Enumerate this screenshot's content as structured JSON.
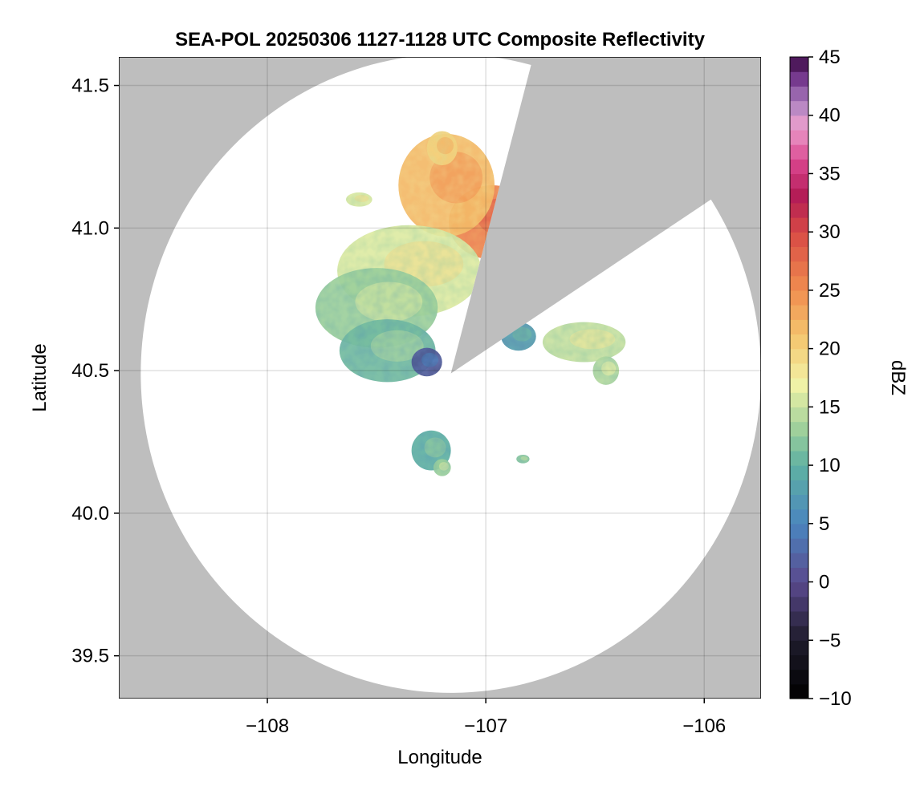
{
  "chart_data": {
    "type": "heatmap",
    "title": "SEA-POL 20250306 1127-1128 UTC Composite Reflectivity",
    "xlabel": "Longitude",
    "ylabel": "Latitude",
    "xlim": [
      -108.68,
      -105.74
    ],
    "ylim": [
      39.35,
      41.6
    ],
    "x_ticks": [
      -108,
      -107,
      -106
    ],
    "x_tick_labels": [
      "−108",
      "−107",
      "−106"
    ],
    "y_ticks": [
      39.5,
      40.0,
      40.5,
      41.0,
      41.5
    ],
    "y_tick_labels": [
      "39.5",
      "40.0",
      "40.5",
      "41.0",
      "41.5"
    ],
    "grid": true,
    "background_color": "#bebebe",
    "coverage_color": "#ffffff",
    "radar_center": [
      -107.16,
      40.49
    ],
    "radar_range_lat_deg": 1.12,
    "blocked_sector": {
      "from_bearing_deg": 15,
      "to_bearing_deg": 57
    },
    "colorbar": {
      "label": "dBZ",
      "min": -10,
      "max": 45,
      "ticks": [
        -10,
        -5,
        0,
        5,
        10,
        15,
        20,
        25,
        30,
        35,
        40,
        45
      ],
      "tick_labels": [
        "−10",
        "−5",
        "0",
        "5",
        "10",
        "15",
        "20",
        "25",
        "30",
        "35",
        "40",
        "45"
      ],
      "colormap": "spectral_extended",
      "color_stops": [
        [
          -10,
          "#000000"
        ],
        [
          -5,
          "#1e1b2b"
        ],
        [
          0,
          "#5a4a8e"
        ],
        [
          5,
          "#4a85bf"
        ],
        [
          10,
          "#5fb1a2"
        ],
        [
          13,
          "#9ccf9b"
        ],
        [
          17,
          "#f2f3a6"
        ],
        [
          21,
          "#f4c66f"
        ],
        [
          25,
          "#f08d4f"
        ],
        [
          30,
          "#d84a45"
        ],
        [
          33,
          "#b21b55"
        ],
        [
          36,
          "#d9448d"
        ],
        [
          39,
          "#ec9fcd"
        ],
        [
          41,
          "#b084c2"
        ],
        [
          43,
          "#7a3d93"
        ],
        [
          45,
          "#3b0a45"
        ]
      ]
    },
    "echo_regions": [
      {
        "name": "northern core",
        "lon": -106.97,
        "lat": 41.02,
        "lon_radius": 0.2,
        "lat_radius": 0.13,
        "dbz": 26
      },
      {
        "name": "northern band",
        "lon": -107.18,
        "lat": 41.15,
        "lon_radius": 0.22,
        "lat_radius": 0.18,
        "dbz": 22
      },
      {
        "name": "north tip",
        "lon": -107.2,
        "lat": 41.28,
        "lon_radius": 0.07,
        "lat_radius": 0.06,
        "dbz": 20
      },
      {
        "name": "central mass",
        "lon": -107.35,
        "lat": 40.85,
        "lon_radius": 0.33,
        "lat_radius": 0.16,
        "dbz": 16
      },
      {
        "name": "western lobe",
        "lon": -107.5,
        "lat": 40.72,
        "lon_radius": 0.28,
        "lat_radius": 0.14,
        "dbz": 13
      },
      {
        "name": "southwest lobe",
        "lon": -107.45,
        "lat": 40.57,
        "lon_radius": 0.22,
        "lat_radius": 0.11,
        "dbz": 11
      },
      {
        "name": "near-radar weak echo",
        "lon": -107.27,
        "lat": 40.53,
        "lon_radius": 0.07,
        "lat_radius": 0.05,
        "dbz": 2
      },
      {
        "name": "eastern cell",
        "lon": -106.55,
        "lat": 40.6,
        "lon_radius": 0.19,
        "lat_radius": 0.07,
        "dbz": 15
      },
      {
        "name": "southeast cell",
        "lon": -106.45,
        "lat": 40.5,
        "lon_radius": 0.06,
        "lat_radius": 0.05,
        "dbz": 14
      },
      {
        "name": "east-central cell",
        "lon": -106.85,
        "lat": 40.62,
        "lon_radius": 0.08,
        "lat_radius": 0.05,
        "dbz": 8
      },
      {
        "name": "southern cell",
        "lon": -107.25,
        "lat": 40.22,
        "lon_radius": 0.09,
        "lat_radius": 0.07,
        "dbz": 10
      },
      {
        "name": "southern cell tail",
        "lon": -107.2,
        "lat": 40.16,
        "lon_radius": 0.04,
        "lat_radius": 0.03,
        "dbz": 13
      },
      {
        "name": "small east cell",
        "lon": -106.83,
        "lat": 40.19,
        "lon_radius": 0.03,
        "lat_radius": 0.015,
        "dbz": 12
      },
      {
        "name": "small northwest cell",
        "lon": -107.58,
        "lat": 41.1,
        "lon_radius": 0.06,
        "lat_radius": 0.025,
        "dbz": 16
      }
    ]
  }
}
